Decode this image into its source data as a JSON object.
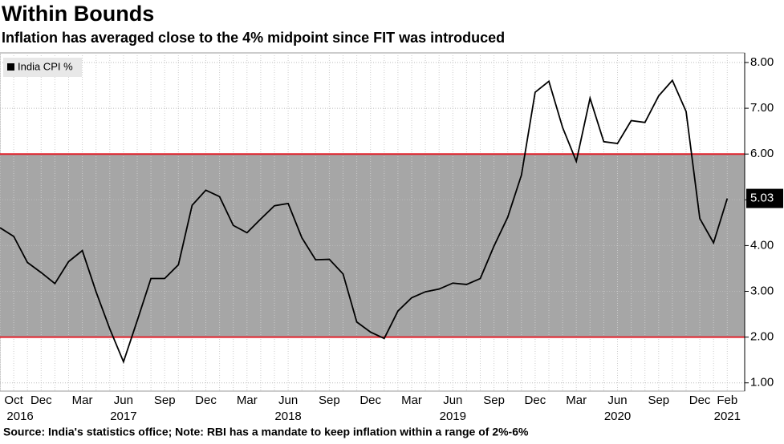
{
  "chart_data": {
    "type": "line",
    "title": "Within Bounds",
    "subtitle": "Inflation has averaged close to the 4% midpoint since FIT was introduced",
    "source": "Source: India's statistics office; Note: RBI has a mandate to keep inflation within a range of 2%-6%",
    "categories": [
      null,
      "Oct",
      null,
      "Dec",
      null,
      null,
      "Mar",
      null,
      null,
      "Jun",
      null,
      null,
      "Sep",
      null,
      null,
      "Dec",
      null,
      null,
      "Mar",
      null,
      null,
      "Jun",
      null,
      null,
      "Sep",
      null,
      null,
      "Dec",
      null,
      null,
      "Mar",
      null,
      null,
      "Jun",
      null,
      null,
      "Sep",
      null,
      null,
      "Dec",
      null,
      null,
      "Mar",
      null,
      null,
      "Jun",
      null,
      null,
      "Sep",
      null,
      null,
      "Dec",
      null,
      "Feb"
    ],
    "year_labels": [
      null,
      "2016",
      null,
      null,
      null,
      null,
      null,
      null,
      null,
      "2017",
      null,
      null,
      null,
      null,
      null,
      null,
      null,
      null,
      null,
      null,
      null,
      "2018",
      null,
      null,
      null,
      null,
      null,
      null,
      null,
      null,
      null,
      null,
      null,
      "2019",
      null,
      null,
      null,
      null,
      null,
      null,
      null,
      null,
      null,
      null,
      null,
      "2020",
      null,
      null,
      null,
      null,
      null,
      null,
      null,
      "2021"
    ],
    "series": [
      {
        "name": "India CPI %",
        "color": "#000000",
        "values": [
          4.39,
          4.2,
          3.63,
          3.41,
          3.17,
          3.65,
          3.89,
          2.99,
          2.18,
          1.46,
          2.36,
          3.28,
          3.28,
          3.58,
          4.88,
          5.21,
          5.07,
          4.44,
          4.28,
          4.58,
          4.87,
          4.92,
          4.17,
          3.69,
          3.7,
          3.38,
          2.33,
          2.11,
          1.97,
          2.57,
          2.86,
          2.99,
          3.05,
          3.18,
          3.15,
          3.28,
          3.99,
          4.62,
          5.54,
          7.35,
          7.59,
          6.58,
          5.84,
          7.22,
          6.27,
          6.23,
          6.73,
          6.69,
          7.27,
          7.61,
          6.93,
          4.59,
          4.06,
          5.03
        ],
        "last_value_label": "5.03"
      }
    ],
    "band": [
      2,
      6
    ],
    "band_color": "#a6a6a6",
    "reference_lines": [
      2,
      6
    ],
    "reference_color": "#e0202a",
    "ylim": [
      0.82,
      8.21
    ],
    "yticks": [
      {
        "value": 1,
        "label": "1.00"
      },
      {
        "value": 2,
        "label": "2.00"
      },
      {
        "value": 3,
        "label": "3.00"
      },
      {
        "value": 4,
        "label": "4.00"
      },
      {
        "value": 5,
        "label": "5.00"
      },
      {
        "value": 6,
        "label": "6.00"
      },
      {
        "value": 7,
        "label": "7.00"
      },
      {
        "value": 8,
        "label": "8.00"
      }
    ],
    "grid": true,
    "legend": "top-left"
  }
}
